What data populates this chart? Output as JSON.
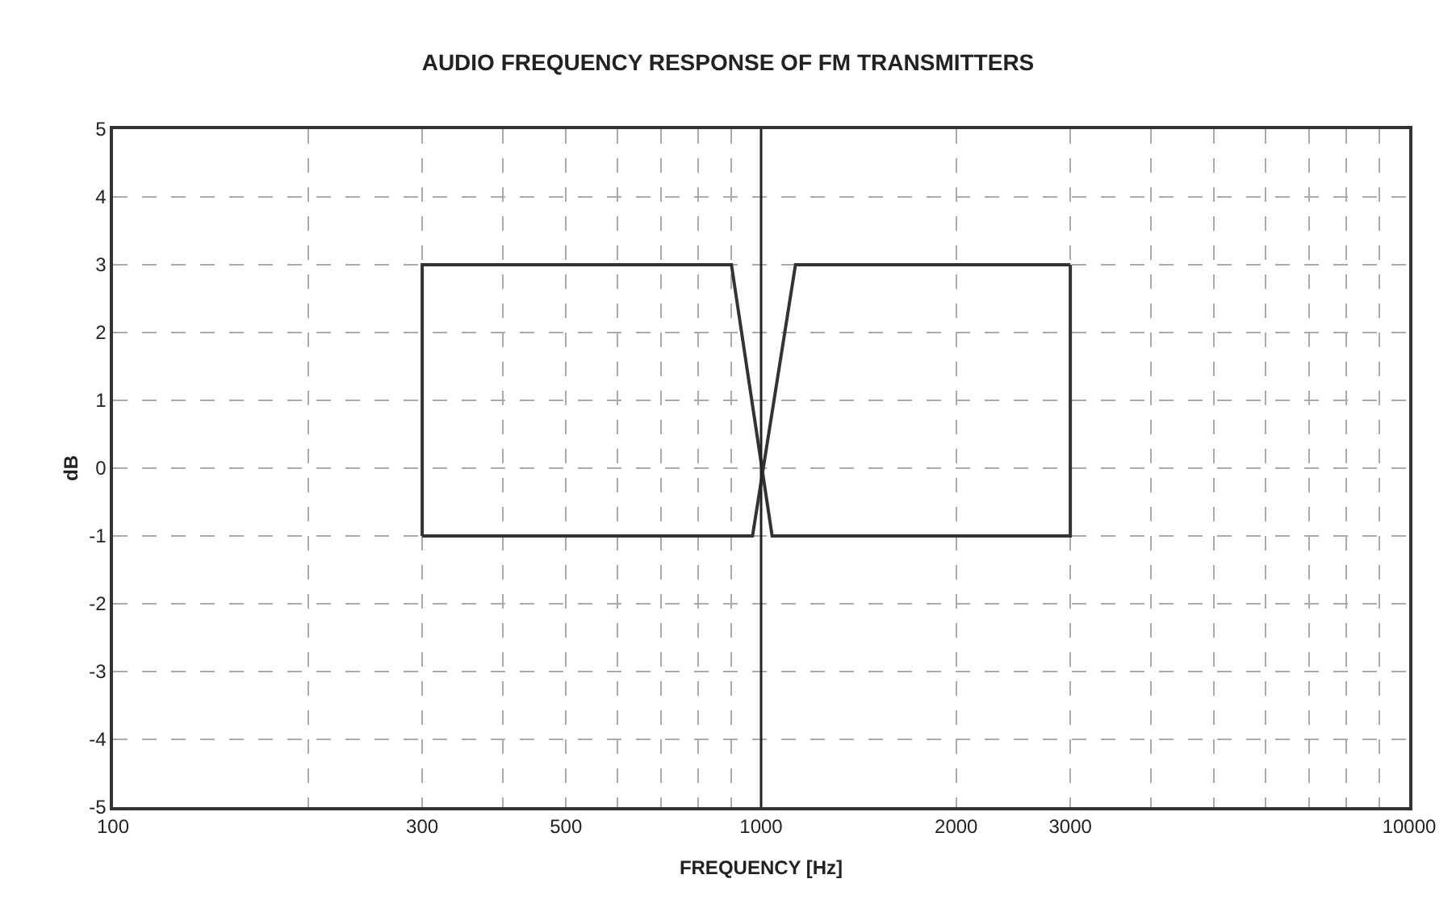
{
  "chart_data": {
    "type": "line",
    "title": "AUDIO FREQUENCY RESPONSE OF FM TRANSMITTERS",
    "xlabel": "FREQUENCY [Hz]",
    "ylabel": "dB",
    "log": "x",
    "grid": true,
    "marker": "none",
    "line_style": "solid",
    "xlim": [
      100,
      10000
    ],
    "ylim": [
      -5,
      5
    ],
    "xticks": [
      100,
      {
        "value": 200,
        "label": null
      },
      300,
      {
        "value": 400,
        "label": null
      },
      500,
      {
        "value": 600,
        "label": null
      },
      {
        "value": 700,
        "label": null
      },
      {
        "value": 800,
        "label": null
      },
      {
        "value": 900,
        "label": null
      },
      1000,
      2000,
      3000,
      {
        "value": 4000,
        "label": null
      },
      {
        "value": 5000,
        "label": null
      },
      {
        "value": 6000,
        "label": null
      },
      {
        "value": 7000,
        "label": null
      },
      {
        "value": 8000,
        "label": null
      },
      {
        "value": 9000,
        "label": null
      },
      10000
    ],
    "yticks": [
      -5,
      -4,
      -3,
      -2,
      -1,
      0,
      1,
      2,
      3,
      4,
      5
    ],
    "series": [
      {
        "color": "#333333",
        "x": [
          300,
          300,
          900,
          1040,
          3000,
          3000
        ],
        "values": [
          -1,
          3,
          3,
          -1,
          -1,
          3
        ]
      },
      {
        "color": "#333333",
        "x": [
          300,
          970,
          1130,
          3000
        ],
        "values": [
          -1,
          -1,
          3,
          3
        ]
      }
    ],
    "ref_lines": [
      {
        "axis": "x",
        "value": 1000,
        "label": null,
        "color": "#222222",
        "line_style": "solid"
      }
    ]
  }
}
